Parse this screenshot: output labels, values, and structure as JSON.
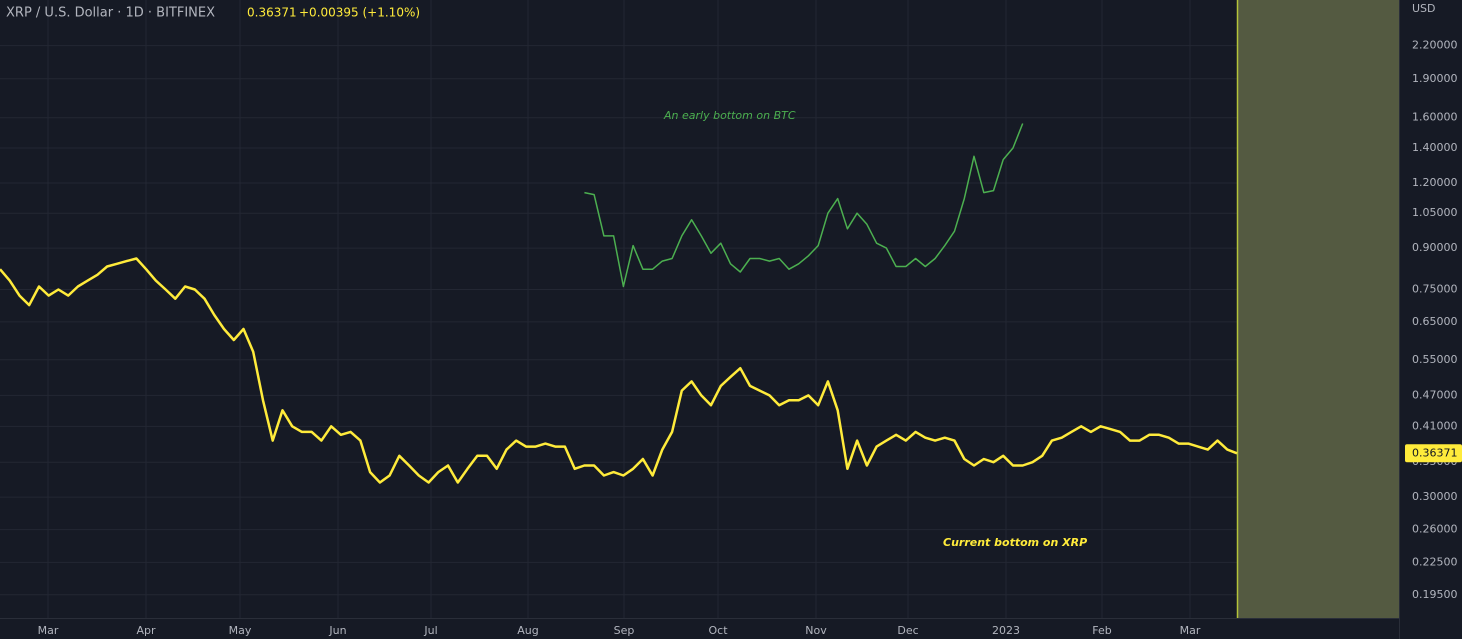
{
  "chart_data": {
    "type": "line",
    "title": "XRP / U.S. Dollar · 1D · BITFINEX",
    "last_price": "0.36371",
    "change": "+0.00395 (+1.10%)",
    "currency": "USD",
    "log_scale": true,
    "grid": true,
    "ylim": [
      0.176,
      2.69
    ],
    "yticks": [
      {
        "value": 2.2,
        "label": "2.20000"
      },
      {
        "value": 1.9,
        "label": "1.90000"
      },
      {
        "value": 1.6,
        "label": "1.60000"
      },
      {
        "value": 1.4,
        "label": "1.40000"
      },
      {
        "value": 1.2,
        "label": "1.20000"
      },
      {
        "value": 1.05,
        "label": "1.05000"
      },
      {
        "value": 0.9,
        "label": "0.90000"
      },
      {
        "value": 0.75,
        "label": "0.75000"
      },
      {
        "value": 0.65,
        "label": "0.65000"
      },
      {
        "value": 0.55,
        "label": "0.55000"
      },
      {
        "value": 0.47,
        "label": "0.47000"
      },
      {
        "value": 0.41,
        "label": "0.41000"
      },
      {
        "value": 0.35,
        "label": "0.35000"
      },
      {
        "value": 0.3,
        "label": "0.30000"
      },
      {
        "value": 0.26,
        "label": "0.26000"
      },
      {
        "value": 0.225,
        "label": "0.22500"
      },
      {
        "value": 0.195,
        "label": "0.19500"
      }
    ],
    "x_labels": [
      "Mar",
      "Apr",
      "May",
      "Jun",
      "Jul",
      "Aug",
      "Sep",
      "Oct",
      "Nov",
      "Dec",
      "2023",
      "Feb",
      "Mar"
    ],
    "annotations": [
      "An early bottom on BTC",
      "Current bottom on XRP"
    ],
    "series": [
      {
        "name": "XRP",
        "color": "#ffeb3b",
        "values": [
          0.82,
          0.78,
          0.73,
          0.7,
          0.76,
          0.73,
          0.75,
          0.73,
          0.76,
          0.78,
          0.8,
          0.83,
          0.84,
          0.85,
          0.86,
          0.82,
          0.78,
          0.75,
          0.72,
          0.76,
          0.75,
          0.72,
          0.67,
          0.63,
          0.6,
          0.63,
          0.57,
          0.46,
          0.385,
          0.44,
          0.41,
          0.4,
          0.4,
          0.385,
          0.41,
          0.395,
          0.4,
          0.385,
          0.335,
          0.32,
          0.33,
          0.36,
          0.345,
          0.33,
          0.32,
          0.335,
          0.345,
          0.32,
          0.34,
          0.36,
          0.36,
          0.34,
          0.37,
          0.385,
          0.375,
          0.375,
          0.38,
          0.375,
          0.375,
          0.34,
          0.345,
          0.345,
          0.33,
          0.335,
          0.33,
          0.34,
          0.355,
          0.33,
          0.37,
          0.4,
          0.48,
          0.5,
          0.47,
          0.45,
          0.49,
          0.51,
          0.53,
          0.49,
          0.48,
          0.47,
          0.45,
          0.46,
          0.46,
          0.47,
          0.45,
          0.5,
          0.44,
          0.34,
          0.385,
          0.345,
          0.375,
          0.385,
          0.395,
          0.385,
          0.4,
          0.39,
          0.385,
          0.39,
          0.385,
          0.355,
          0.345,
          0.355,
          0.35,
          0.36,
          0.345,
          0.345,
          0.35,
          0.36,
          0.385,
          0.39,
          0.4,
          0.41,
          0.4,
          0.41,
          0.405,
          0.4,
          0.385,
          0.385,
          0.395,
          0.395,
          0.39,
          0.38,
          0.38,
          0.375,
          0.37,
          0.385,
          0.37,
          0.364
        ]
      },
      {
        "name": "BTC",
        "color": "#4caf50",
        "values": [
          null,
          null,
          null,
          null,
          null,
          null,
          null,
          null,
          null,
          null,
          null,
          null,
          null,
          null,
          null,
          null,
          null,
          null,
          null,
          null,
          null,
          null,
          null,
          null,
          null,
          null,
          null,
          null,
          null,
          null,
          null,
          null,
          null,
          null,
          null,
          null,
          null,
          null,
          null,
          null,
          null,
          null,
          null,
          null,
          null,
          null,
          null,
          null,
          null,
          null,
          null,
          null,
          null,
          null,
          null,
          null,
          null,
          null,
          null,
          null,
          1.15,
          1.14,
          0.95,
          0.95,
          0.76,
          0.91,
          0.82,
          0.82,
          0.85,
          0.86,
          0.95,
          1.02,
          0.95,
          0.88,
          0.92,
          0.84,
          0.81,
          0.86,
          0.86,
          0.85,
          0.86,
          0.82,
          0.84,
          0.87,
          0.91,
          1.05,
          1.12,
          0.98,
          1.05,
          1.0,
          0.92,
          0.9,
          0.83,
          0.83,
          0.86,
          0.83,
          0.86,
          0.91,
          0.97,
          1.12,
          1.35,
          1.15,
          1.16,
          1.33,
          1.4,
          1.56,
          null,
          null,
          null,
          null,
          null,
          null,
          null,
          null,
          null,
          null,
          null,
          null,
          null,
          null,
          null,
          null,
          null,
          null,
          null,
          null,
          null,
          null
        ]
      }
    ]
  }
}
